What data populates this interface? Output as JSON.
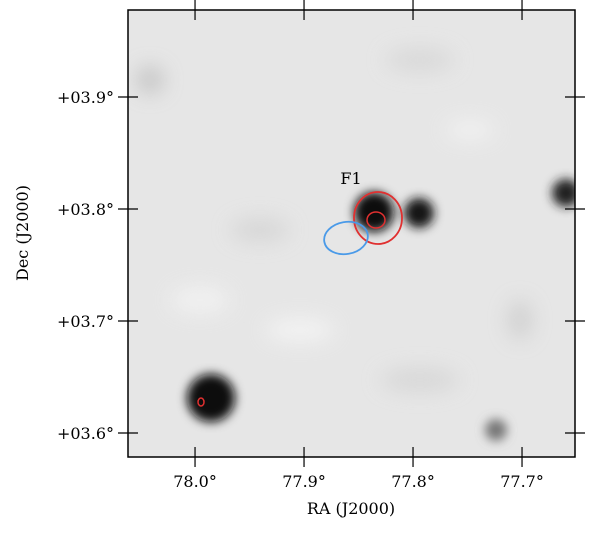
{
  "chart_data": {
    "type": "skymap",
    "xlabel": "RA (J2000)",
    "ylabel": "Dec (J2000)",
    "annotation": "F1",
    "xlim": [
      78.0615,
      77.6514
    ],
    "xticks": [
      {
        "value": 78.0,
        "label": "78.0°"
      },
      {
        "value": 77.9,
        "label": "77.9°"
      },
      {
        "value": 77.8,
        "label": "77.8°"
      },
      {
        "value": 77.7,
        "label": "77.7°"
      }
    ],
    "ylim": [
      3.5786,
      3.9777
    ],
    "yticks": [
      {
        "value": 3.9,
        "label": "+03.9°"
      },
      {
        "value": 3.8,
        "label": "+03.8°"
      },
      {
        "value": 3.7,
        "label": "+03.7°"
      },
      {
        "value": 3.6,
        "label": "+03.6°"
      }
    ]
  }
}
